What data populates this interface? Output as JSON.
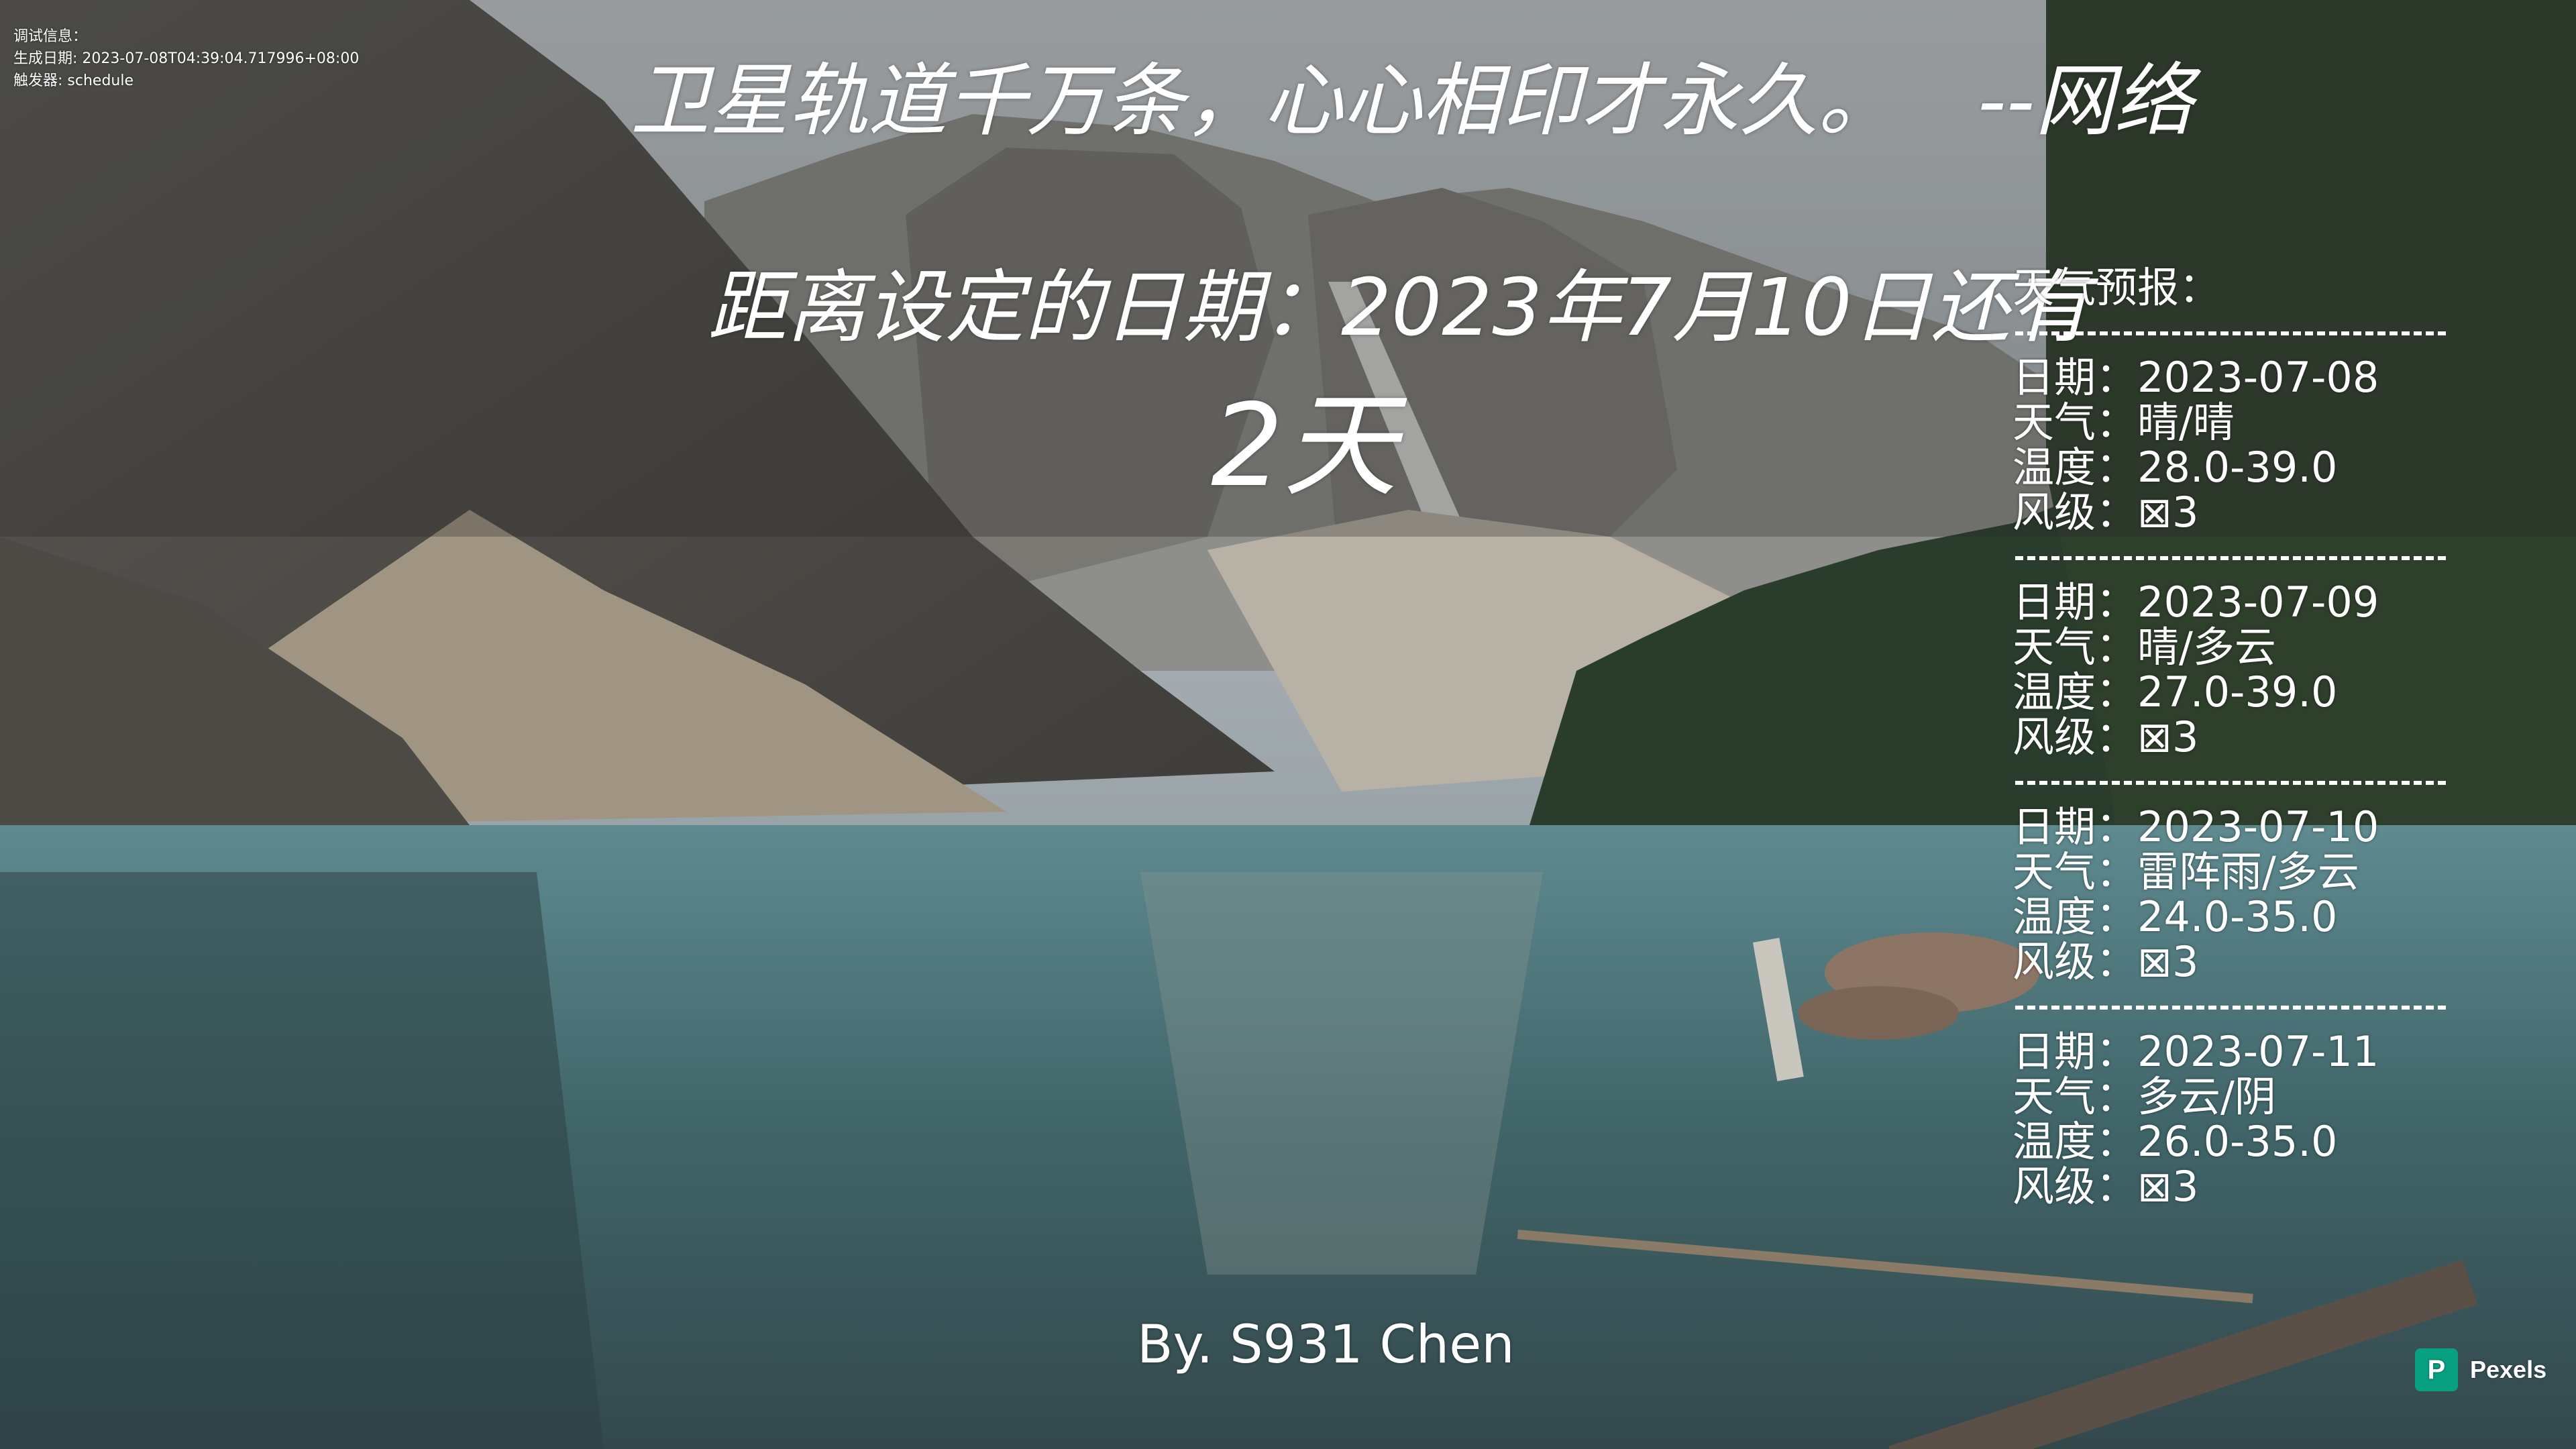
{
  "debug": {
    "line1": "调试信息：",
    "line2": "生成日期: 2023-07-08T04:39:04.717996+08:00",
    "line3": "触发器: schedule"
  },
  "quote": {
    "text": "卫星轨道千万条，心心相印才永久。",
    "source": "--网络"
  },
  "countdown": {
    "label": "距离设定的日期：2023年7月10日还有",
    "days": "2天"
  },
  "weather": {
    "title": "天气预报：",
    "separator": "------------------------",
    "entries": [
      {
        "date": "日期：2023-07-08",
        "weather": "天气：晴/晴",
        "temp": "温度：28.0-39.0",
        "wind": "风级：⊠3"
      },
      {
        "date": "日期：2023-07-09",
        "weather": "天气：晴/多云",
        "temp": "温度：27.0-39.0",
        "wind": "风级：⊠3"
      },
      {
        "date": "日期：2023-07-10",
        "weather": "天气：雷阵雨/多云",
        "temp": "温度：24.0-35.0",
        "wind": "风级：⊠3"
      },
      {
        "date": "日期：2023-07-11",
        "weather": "天气：多云/阴",
        "temp": "温度：26.0-35.0",
        "wind": "风级：⊠3"
      }
    ]
  },
  "author": "By. S931 Chen",
  "watermark": {
    "label": "Pexels",
    "icon": "pexels-logo-icon",
    "color": "#07a081"
  }
}
